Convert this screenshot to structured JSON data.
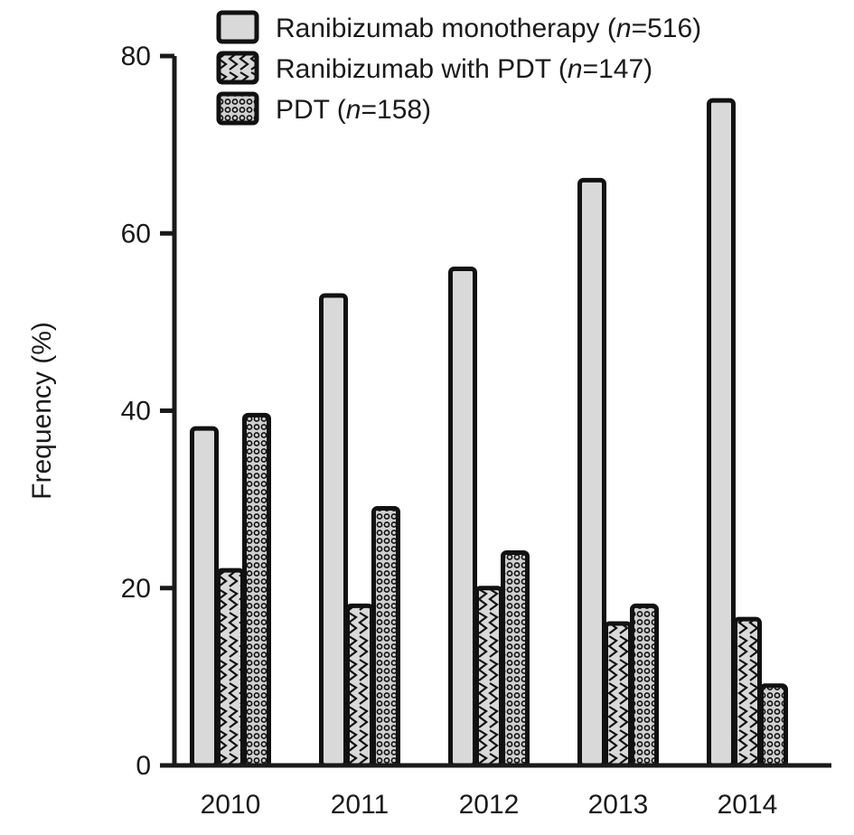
{
  "chart_data": {
    "type": "bar",
    "title": "",
    "xlabel": "",
    "ylabel": "Frequency (%)",
    "ylim": [
      0,
      80
    ],
    "yticks": [
      0,
      20,
      40,
      60,
      80
    ],
    "grid": false,
    "legend_position": "top",
    "categories": [
      "2010",
      "2011",
      "2012",
      "2013",
      "2014"
    ],
    "series": [
      {
        "name": "Ranibizumab monotherapy",
        "n_label": "n",
        "n_value": "=516)",
        "pattern": "solid-light",
        "values": [
          38,
          53,
          56,
          66,
          75
        ]
      },
      {
        "name": "Ranibizumab with PDT",
        "n_label": "n",
        "n_value": "=147)",
        "pattern": "zigzag",
        "values": [
          22,
          18,
          20,
          16,
          16.5
        ]
      },
      {
        "name": "PDT",
        "n_label": "n",
        "n_value": "=158)",
        "pattern": "dots",
        "values": [
          39.5,
          29,
          24,
          18,
          9
        ]
      }
    ]
  },
  "colors": {
    "axis": "#1a1a1a",
    "bar_outline": "#111111",
    "bar_fill": "#d9d9d9"
  }
}
